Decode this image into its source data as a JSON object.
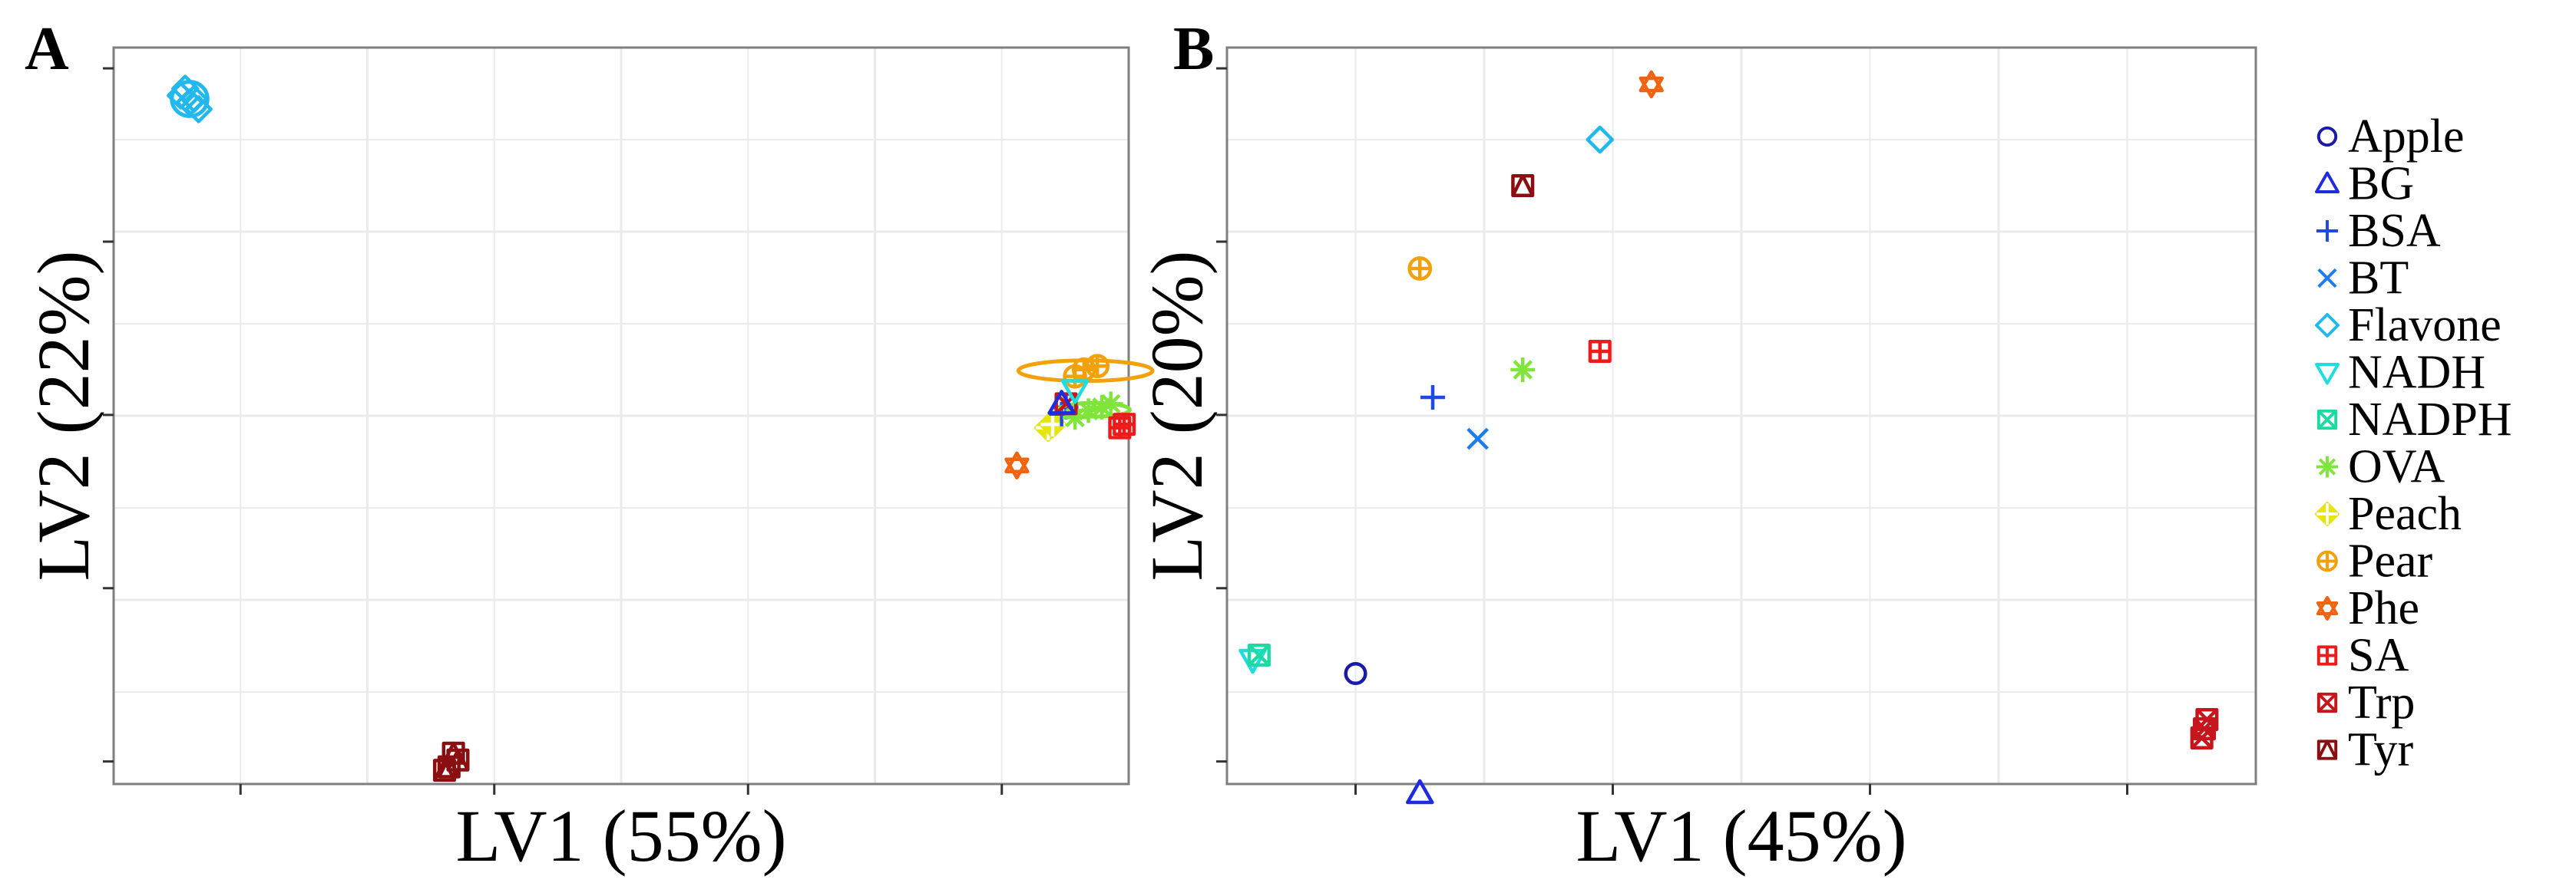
{
  "chart_data": [
    {
      "panel": "A",
      "type": "scatter",
      "xlabel": "LV1 (55%)",
      "ylabel": "LV2 (22%)",
      "xlim": [
        -1.25,
        1.02
      ],
      "ylim": [
        -1.05,
        1.1
      ],
      "grid": true,
      "series": [
        {
          "name": "Flavone",
          "points": [
            [
              -1.1,
              0.96
            ],
            [
              -1.08,
              0.94
            ],
            [
              -1.09,
              0.98
            ],
            [
              -1.06,
              0.92
            ],
            [
              -1.07,
              0.95
            ]
          ],
          "ellipse": {
            "rx": 0.04,
            "ry": 0.05
          }
        },
        {
          "name": "Tyr",
          "points": [
            [
              -0.5,
              -1.0
            ],
            [
              -0.48,
              -0.98
            ],
            [
              -0.49,
              -0.96
            ],
            [
              -0.51,
              -1.01
            ]
          ]
        },
        {
          "name": "Pear",
          "points": [
            [
              0.9,
              0.14
            ],
            [
              0.92,
              0.16
            ],
            [
              0.95,
              0.17
            ]
          ],
          "ellipse": {
            "rx": 0.15,
            "ry": 0.03
          }
        },
        {
          "name": "Phe",
          "points": [
            [
              0.77,
              -0.12
            ]
          ]
        },
        {
          "name": "Peach",
          "points": [
            [
              0.84,
              -0.01
            ],
            [
              0.85,
              0.0
            ]
          ]
        },
        {
          "name": "BSA",
          "points": [
            [
              0.87,
              0.03
            ],
            [
              0.88,
              0.05
            ]
          ]
        },
        {
          "name": "OVA",
          "points": [
            [
              0.93,
              0.04
            ],
            [
              0.96,
              0.05
            ],
            [
              0.98,
              0.06
            ],
            [
              0.9,
              0.02
            ]
          ],
          "ellipse": {
            "rx": 0.08,
            "ry": 0.02
          }
        },
        {
          "name": "SA",
          "points": [
            [
              1.0,
              -0.01
            ],
            [
              1.01,
              0.0
            ]
          ]
        },
        {
          "name": "Trp",
          "points": [
            [
              0.88,
              0.06
            ]
          ]
        },
        {
          "name": "NADH",
          "points": [
            [
              0.9,
              0.1
            ]
          ]
        },
        {
          "name": "BG",
          "points": [
            [
              0.87,
              0.06
            ]
          ]
        }
      ]
    },
    {
      "panel": "B",
      "type": "scatter",
      "xlabel": "LV1 (45%)",
      "ylabel": "LV2 (20%)",
      "xlim": [
        -0.35,
        0.45
      ],
      "ylim": [
        -0.32,
        0.48
      ],
      "grid": true,
      "series": [
        {
          "name": "Apple",
          "points": [
            [
              -0.25,
              -0.2
            ]
          ]
        },
        {
          "name": "BG",
          "points": [
            [
              -0.2,
              -0.33
            ]
          ]
        },
        {
          "name": "BSA",
          "points": [
            [
              -0.19,
              0.1
            ]
          ]
        },
        {
          "name": "BT",
          "points": [
            [
              -0.155,
              0.055
            ]
          ]
        },
        {
          "name": "Flavone",
          "points": [
            [
              -0.06,
              0.38
            ]
          ]
        },
        {
          "name": "NADH",
          "points": [
            [
              -0.33,
              -0.185
            ]
          ]
        },
        {
          "name": "NADPH",
          "points": [
            [
              -0.325,
              -0.18
            ]
          ]
        },
        {
          "name": "OVA",
          "points": [
            [
              -0.12,
              0.13
            ]
          ]
        },
        {
          "name": "Pear",
          "points": [
            [
              -0.2,
              0.24
            ]
          ]
        },
        {
          "name": "Phe",
          "points": [
            [
              -0.02,
              0.44
            ]
          ]
        },
        {
          "name": "SA",
          "points": [
            [
              -0.06,
              0.15
            ]
          ]
        },
        {
          "name": "Trp",
          "points": [
            [
              0.41,
              -0.26
            ],
            [
              0.412,
              -0.25
            ],
            [
              0.408,
              -0.27
            ]
          ]
        },
        {
          "name": "Tyr",
          "points": [
            [
              -0.12,
              0.33
            ]
          ]
        }
      ]
    }
  ],
  "legend": [
    {
      "label": "Apple",
      "symbol": "circle",
      "color": "#1a1aa8"
    },
    {
      "label": "BG",
      "symbol": "triangle",
      "color": "#1f2be0"
    },
    {
      "label": "BSA",
      "symbol": "plus",
      "color": "#1f48e8"
    },
    {
      "label": "BT",
      "symbol": "cross",
      "color": "#1c7cf0"
    },
    {
      "label": "Flavone",
      "symbol": "diamond",
      "color": "#21b8ee"
    },
    {
      "label": "NADH",
      "symbol": "triangle-down",
      "color": "#1fdcde"
    },
    {
      "label": "NADPH",
      "symbol": "square-x",
      "color": "#1ed9a3"
    },
    {
      "label": "OVA",
      "symbol": "asterisk",
      "color": "#7fe53b"
    },
    {
      "label": "Peach",
      "symbol": "diamond-plus",
      "color": "#e6e60f"
    },
    {
      "label": "Pear",
      "symbol": "circle-plus",
      "color": "#f2a10b"
    },
    {
      "label": "Phe",
      "symbol": "star",
      "color": "#f2630f"
    },
    {
      "label": "SA",
      "symbol": "square-plus",
      "color": "#ee1b1b"
    },
    {
      "label": "Trp",
      "symbol": "square-x",
      "color": "#c5161d"
    },
    {
      "label": "Tyr",
      "symbol": "square-triangle",
      "color": "#8b0e10"
    }
  ]
}
